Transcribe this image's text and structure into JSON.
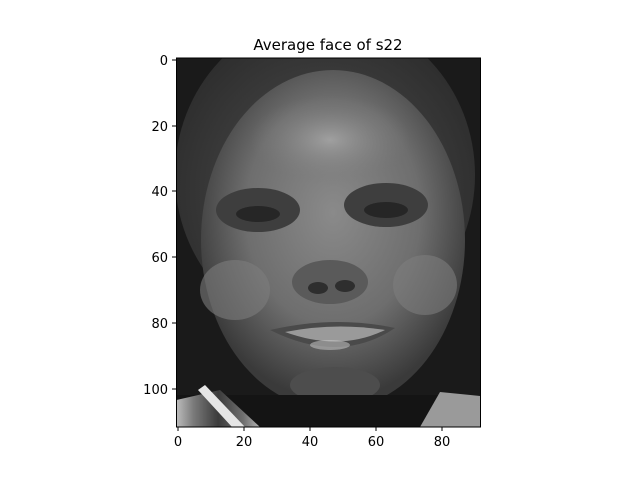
{
  "figure": {
    "title": "Average face of s22",
    "colormap": "gray",
    "image_description": "Grayscale averaged face portrait (dark-skinned man, short hair, smiling) on a black background, with a patterned shirt collar at the bottom",
    "x_ticks": [
      "0",
      "20",
      "40",
      "60",
      "80"
    ],
    "y_ticks": [
      "0",
      "20",
      "40",
      "60",
      "80",
      "100"
    ],
    "xlim": [
      0,
      92
    ],
    "ylim": [
      112,
      0
    ]
  }
}
